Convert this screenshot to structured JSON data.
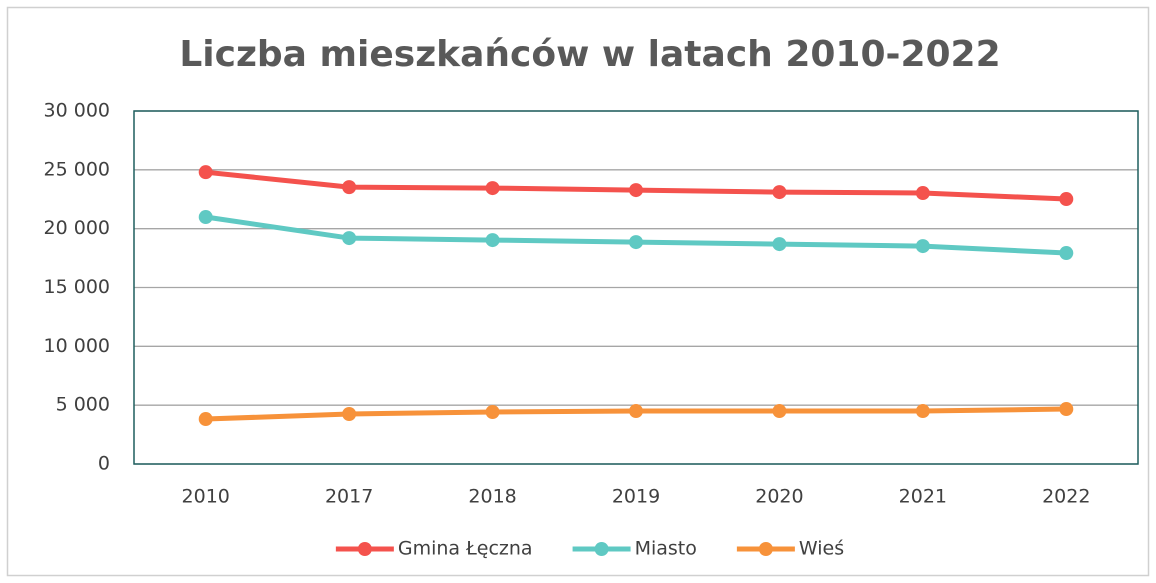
{
  "chart_data": {
    "type": "line",
    "title": "Liczba mieszkańców w latach 2010-2022",
    "categories": [
      "2010",
      "2017",
      "2018",
      "2019",
      "2020",
      "2021",
      "2022"
    ],
    "series": [
      {
        "name": "Gmina Łęczna",
        "color": "#f4524d",
        "values": [
          24800,
          23530,
          23450,
          23280,
          23110,
          23030,
          22520
        ]
      },
      {
        "name": "Miasto",
        "color": "#5fc9c3",
        "values": [
          20990,
          19200,
          19030,
          18860,
          18690,
          18520,
          17930
        ]
      },
      {
        "name": "Wieś",
        "color": "#f7923a",
        "values": [
          3820,
          4250,
          4420,
          4500,
          4500,
          4500,
          4670
        ]
      }
    ],
    "ylim": [
      0,
      30000
    ],
    "yticks": [
      0,
      {
        "value": 5000,
        "label": "5 000"
      },
      {
        "value": 10000,
        "label": "10 000"
      },
      {
        "value": 15000,
        "label": "15 000"
      },
      {
        "value": 20000,
        "label": "20 000"
      },
      {
        "value": 25000,
        "label": "25 000"
      },
      {
        "value": 30000,
        "label": "30 000"
      }
    ],
    "grid": true,
    "legend": "bottom"
  }
}
